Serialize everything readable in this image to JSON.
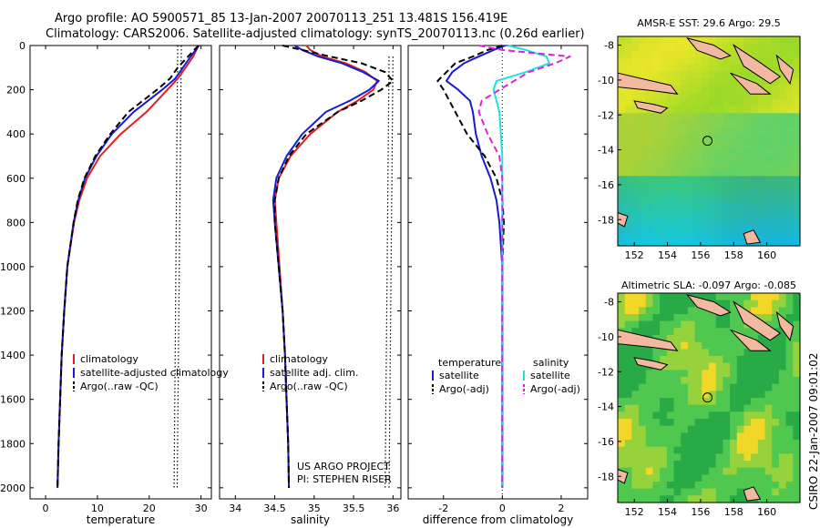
{
  "title_line1": "Argo profile: AO 5900571_85 13-Jan-2007 20070113_251 13.481S 156.419E",
  "title_line2": "Climatology: CARS2006. Satellite-adjusted climatology: synTS_20070113.nc (0.26d earlier)",
  "credit": "CSIRO 22-Jan-2007 09:01:02",
  "colors": {
    "climatology": "#e02020",
    "satellite": "#1a1ad0",
    "argo": "#000000",
    "satellite_diff_salinity": "#20e0e0",
    "argo_diff_salinity": "#e020e0"
  },
  "chart_data": [
    {
      "type": "line",
      "xlabel": "temperature",
      "ylim": [
        2050,
        0
      ],
      "xlim": [
        -3,
        32
      ],
      "yticks": [
        "0",
        "200",
        "400",
        "600",
        "800",
        "1000",
        "1200",
        "1400",
        "1600",
        "1800",
        "2000"
      ],
      "xticks": [
        "0",
        "10",
        "20",
        "30"
      ],
      "legend": [
        "climatology",
        "satellite-adjusted climatology",
        "Argo(..raw -QC)"
      ],
      "depth": [
        0,
        50,
        100,
        150,
        200,
        300,
        400,
        500,
        600,
        700,
        800,
        1000,
        1200,
        1400,
        1600,
        1800,
        2000
      ],
      "series": [
        {
          "name": "climatology",
          "color": "#e02020",
          "style": "solid",
          "values": [
            29.5,
            28.5,
            27.0,
            25.5,
            23.5,
            19.5,
            14.5,
            10.5,
            8.0,
            6.5,
            5.5,
            4.2,
            3.6,
            3.1,
            2.8,
            2.5,
            2.3
          ]
        },
        {
          "name": "satellite-adjusted climatology",
          "color": "#1a1ad0",
          "style": "solid",
          "values": [
            29.6,
            28.0,
            26.5,
            25.0,
            22.5,
            17.0,
            12.8,
            9.8,
            7.6,
            6.3,
            5.4,
            4.2,
            3.6,
            3.1,
            2.8,
            2.5,
            2.3
          ]
        },
        {
          "name": "Argo(..raw -QC)",
          "color": "#000000",
          "style": "dashed",
          "values": [
            29.5,
            27.5,
            25.5,
            24.0,
            21.5,
            16.0,
            12.5,
            9.6,
            7.5,
            6.2,
            5.4,
            4.2,
            3.6,
            3.1,
            2.8,
            2.5,
            2.3
          ]
        }
      ],
      "reference_lines": [
        {
          "style": "dotted",
          "values_depth": [
            0,
            2000
          ],
          "x": [
            25.5,
            24.8
          ]
        },
        {
          "style": "dotted",
          "values_depth": [
            0,
            2000
          ],
          "x": [
            26.2,
            25.4
          ]
        }
      ]
    },
    {
      "type": "line",
      "xlabel": "salinity",
      "ylim": [
        2050,
        0
      ],
      "xlim": [
        33.8,
        36.1
      ],
      "xticks": [
        "34",
        "34.5",
        "35",
        "35.5",
        "36"
      ],
      "legend": [
        "climatology",
        "satellite adj. clim.",
        "Argo(..raw -QC)"
      ],
      "annotation": [
        "US ARGO PROJECT",
        "PI: STEPHEN RISER"
      ],
      "depth": [
        0,
        20,
        50,
        80,
        120,
        160,
        200,
        250,
        300,
        400,
        500,
        600,
        700,
        800,
        1000,
        1200,
        1400,
        1600,
        1800,
        2000
      ],
      "series": [
        {
          "name": "climatology",
          "color": "#e02020",
          "style": "solid",
          "values": [
            34.9,
            34.95,
            35.1,
            35.4,
            35.65,
            35.8,
            35.75,
            35.55,
            35.3,
            34.95,
            34.7,
            34.55,
            34.5,
            34.52,
            34.56,
            34.6,
            34.63,
            34.65,
            34.67,
            34.68
          ]
        },
        {
          "name": "satellite adj. clim.",
          "color": "#1a1ad0",
          "style": "solid",
          "values": [
            34.75,
            34.85,
            35.05,
            35.35,
            35.62,
            35.82,
            35.7,
            35.45,
            35.15,
            34.85,
            34.65,
            34.52,
            34.48,
            34.5,
            34.55,
            34.6,
            34.63,
            34.65,
            34.67,
            34.68
          ]
        },
        {
          "name": "Argo(..raw -QC)",
          "color": "#000000",
          "style": "dashed",
          "values": [
            34.6,
            34.85,
            35.2,
            35.6,
            35.9,
            36.0,
            35.85,
            35.6,
            35.3,
            34.9,
            34.68,
            34.55,
            34.5,
            34.5,
            34.55,
            34.6,
            34.63,
            34.65,
            34.67,
            34.68
          ]
        }
      ],
      "reference_lines": [
        {
          "style": "dotted",
          "values_depth": [
            50,
            2000
          ],
          "x": [
            35.95,
            35.9
          ]
        },
        {
          "style": "dotted",
          "values_depth": [
            50,
            2000
          ],
          "x": [
            36.0,
            35.95
          ]
        }
      ]
    },
    {
      "type": "line",
      "xlabel": "difference from climatology",
      "ylim": [
        2050,
        0
      ],
      "xlim": [
        -3.2,
        2.9
      ],
      "xticks": [
        "-2",
        "0",
        "2"
      ],
      "legend_left_title": "temperature",
      "legend_right_title": "salinity",
      "legend_left": [
        "satellite",
        "Argo(-adj)"
      ],
      "legend_right": [
        "satellite",
        "Argo(-adj)"
      ],
      "depth": [
        0,
        20,
        50,
        80,
        120,
        160,
        200,
        250,
        300,
        400,
        500,
        600,
        700,
        800,
        1000,
        1200,
        1400,
        1600,
        1800,
        2000
      ],
      "series": [
        {
          "name": "temperature satellite",
          "color": "#1a1ad0",
          "style": "solid",
          "values": [
            0.1,
            -0.3,
            -0.8,
            -1.3,
            -1.7,
            -1.9,
            -1.5,
            -1.1,
            -1.0,
            -0.9,
            -0.7,
            -0.4,
            -0.2,
            -0.1,
            0.0,
            0.0,
            0.0,
            0.0,
            0.0,
            0.0
          ]
        },
        {
          "name": "temperature Argo(-adj)",
          "color": "#000000",
          "style": "dashed",
          "values": [
            0.0,
            -0.5,
            -1.0,
            -1.6,
            -1.9,
            -2.2,
            -2.0,
            -1.8,
            -1.6,
            -1.2,
            -0.6,
            -0.2,
            0.0,
            0.05,
            0.0,
            0.0,
            0.0,
            0.0,
            0.0,
            0.0
          ]
        },
        {
          "name": "salinity satellite",
          "color": "#20e0e0",
          "style": "solid",
          "values": [
            0.2,
            0.8,
            1.5,
            1.6,
            0.8,
            -0.2,
            -0.3,
            -0.2,
            -0.1,
            -0.05,
            0.0,
            0.0,
            0.0,
            0.0,
            0.0,
            0.0,
            0.0,
            0.0,
            0.0,
            0.0
          ]
        },
        {
          "name": "salinity Argo(-adj)",
          "color": "#e020e0",
          "style": "dashed",
          "values": [
            -0.8,
            0.0,
            2.3,
            1.8,
            0.9,
            0.4,
            -0.1,
            -0.7,
            -0.8,
            -0.5,
            -0.1,
            0.0,
            0.0,
            0.0,
            0.0,
            0.0,
            0.0,
            0.0,
            0.0,
            0.0
          ]
        }
      ]
    },
    {
      "type": "heatmap",
      "title": "AMSR-E SST: 29.6 Argo: 29.5",
      "xlim": [
        151,
        162
      ],
      "ylim": [
        -19.5,
        -7.5
      ],
      "xticks": [
        "152",
        "154",
        "156",
        "158",
        "160"
      ],
      "yticks": [
        "-8",
        "-10",
        "-12",
        "-14",
        "-16",
        "-18"
      ],
      "marker": {
        "lon": 156.419,
        "lat": -13.481
      }
    },
    {
      "type": "heatmap",
      "title": "Altimetric SLA: -0.097 Argo: -0.085",
      "xlim": [
        151,
        162
      ],
      "ylim": [
        -19.5,
        -7.5
      ],
      "xticks": [
        "152",
        "154",
        "156",
        "158",
        "160"
      ],
      "yticks": [
        "-8",
        "-10",
        "-12",
        "-14",
        "-16",
        "-18"
      ],
      "marker": {
        "lon": 156.419,
        "lat": -13.481
      }
    }
  ]
}
